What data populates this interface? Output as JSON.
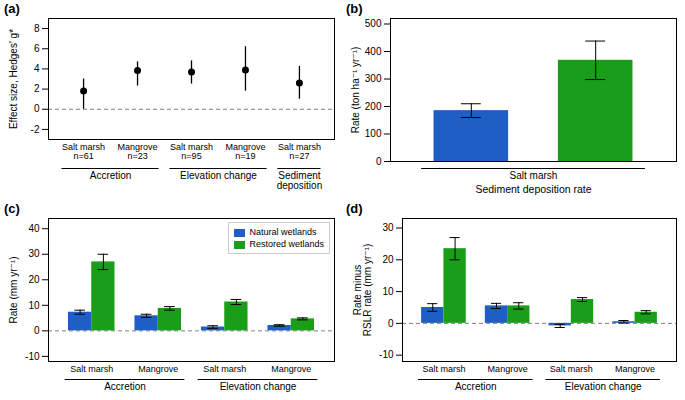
{
  "chart_data": [
    {
      "type": "scatter",
      "title": "(a)",
      "categories": [
        "Salt marsh\nn=61",
        "Mangrove\nn=23",
        "Salt marsh\nn=95",
        "Mangrove\nn=19",
        "Salt marsh\nn=27"
      ],
      "values": [
        1.8,
        3.85,
        3.7,
        3.9,
        2.6
      ],
      "error_low": [
        1.8,
        1.55,
        1.2,
        2.1,
        1.6
      ],
      "error_high": [
        1.2,
        0.85,
        1.1,
        2.3,
        1.65
      ],
      "groups": [
        {
          "label": "Accretion",
          "count": 2
        },
        {
          "label": "Elevation change",
          "count": 2
        },
        {
          "label": "Sediment\ndeposition",
          "count": 1
        }
      ],
      "ylabel": "Effect size, Hedges' g*",
      "ylim": [
        -3,
        9
      ],
      "yticks": [
        -2,
        0,
        2,
        4,
        6,
        8
      ],
      "hline": 0
    },
    {
      "type": "bar",
      "title": "(b)",
      "categories": [
        null,
        null
      ],
      "values": [
        185,
        368
      ],
      "errors": [
        25,
        70
      ],
      "colors": [
        "#1f5fc4",
        "#1a9e1a"
      ],
      "groups": [
        {
          "label": "Salt marsh",
          "count": 2
        }
      ],
      "xlabel": "Sediment deposition rate",
      "ylabel": "Rate (ton ha⁻¹ yr⁻¹)",
      "ylim": [
        0,
        520
      ],
      "yticks": [
        0,
        100,
        200,
        300,
        400,
        500
      ]
    },
    {
      "type": "bar",
      "title": "(c)",
      "categories": [
        "Salt marsh",
        "Mangrove",
        "Salt marsh",
        "Mangrove"
      ],
      "series": [
        {
          "name": "Natural wetlands",
          "color": "#1f5fc4",
          "values": [
            7.3,
            5.9,
            1.5,
            2.1
          ],
          "errors": [
            0.8,
            0.6,
            0.5,
            0.3
          ]
        },
        {
          "name": "Restored wetlands",
          "color": "#1a9e1a",
          "values": [
            27.0,
            8.8,
            11.3,
            4.7
          ],
          "errors": [
            3.0,
            0.7,
            1.0,
            0.4
          ]
        }
      ],
      "groups": [
        {
          "label": "Accretion",
          "count": 2
        },
        {
          "label": "Elevation change",
          "count": 2
        }
      ],
      "ylabel": "Rate (mm yr⁻¹)",
      "ylim": [
        -12,
        44
      ],
      "yticks": [
        -10,
        0,
        10,
        20,
        30,
        40
      ],
      "hline": 0,
      "legend": "upper right"
    },
    {
      "type": "bar",
      "title": "(d)",
      "categories": [
        "Salt marsh",
        "Mangrove",
        "Salt marsh",
        "Mangrove"
      ],
      "series": [
        {
          "name": "Natural wetlands",
          "color": "#1f5fc4",
          "values": [
            5.0,
            5.5,
            -0.8,
            0.5
          ],
          "errors": [
            1.2,
            0.8,
            0.5,
            0.4
          ]
        },
        {
          "name": "Restored wetlands",
          "color": "#1a9e1a",
          "values": [
            23.5,
            5.5,
            7.5,
            3.5
          ],
          "errors": [
            3.5,
            1.0,
            0.6,
            0.5
          ]
        }
      ],
      "groups": [
        {
          "label": "Accretion",
          "count": 2
        },
        {
          "label": "Elevation change",
          "count": 2
        }
      ],
      "ylabel": "Rate minus\nRSLR rate (mm yr⁻¹)",
      "ylim": [
        -12,
        33
      ],
      "yticks": [
        -10,
        0,
        10,
        20,
        30
      ],
      "hline": 0
    }
  ]
}
